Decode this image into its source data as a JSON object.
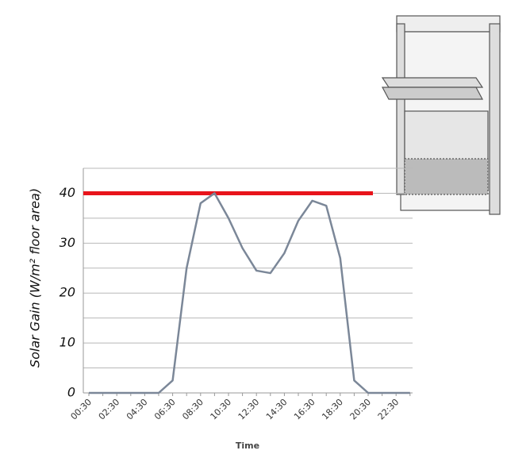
{
  "chart_data": {
    "type": "line",
    "y_label": "Solar Gain (W/m² floor area)",
    "x_label": "Time",
    "categories": [
      "00:30",
      null,
      "02:30",
      null,
      "04:30",
      null,
      "06:30",
      null,
      "08:30",
      null,
      "10:30",
      null,
      "12:30",
      null,
      "14:30",
      null,
      "16:30",
      null,
      "18:30",
      null,
      "20:30",
      null,
      "22:30",
      null
    ],
    "series": [
      {
        "name": "Solar gain",
        "color": "#7b8798",
        "values": [
          0,
          0,
          0,
          0,
          0,
          0,
          2.5,
          25,
          38,
          40,
          35,
          29,
          24.5,
          24,
          28,
          34.5,
          38.5,
          37.5,
          27,
          2.5,
          0,
          0,
          0,
          0
        ]
      }
    ],
    "threshold": {
      "value": 40,
      "color": "#e8141b"
    },
    "ylim": [
      0,
      45
    ],
    "yticks": [
      0,
      10,
      20,
      30,
      40
    ],
    "minor_yticks": [
      5,
      15,
      25,
      35,
      45
    ],
    "grid": true
  }
}
